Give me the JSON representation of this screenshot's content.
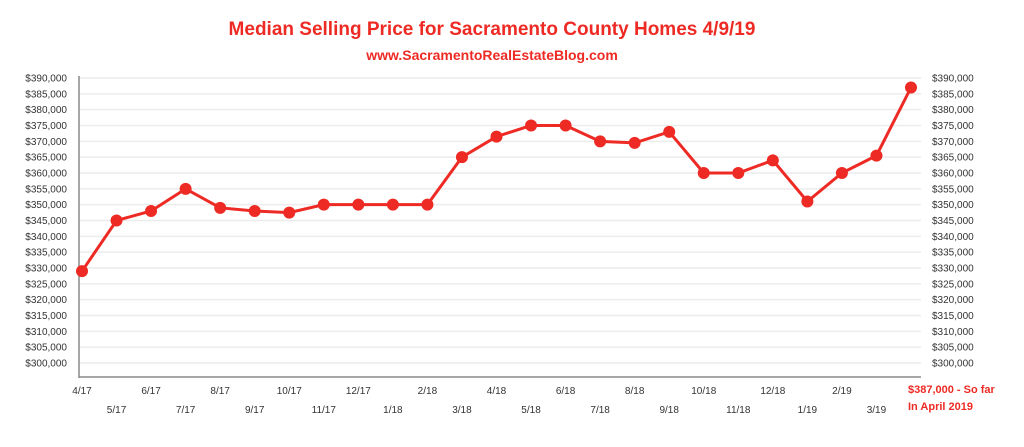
{
  "chart_data": {
    "type": "line",
    "title": "Median Selling Price for Sacramento County Homes 4/9/19",
    "subtitle": "www.SacramentoRealEstateBlog.com",
    "xlabel": "",
    "ylabel": "",
    "ylim": [
      300000,
      390000
    ],
    "ystep": 5000,
    "yticks": [
      "$300,000",
      "$305,000",
      "$310,000",
      "$315,000",
      "$320,000",
      "$325,000",
      "$330,000",
      "$335,000",
      "$340,000",
      "$345,000",
      "$350,000",
      "$355,000",
      "$360,000",
      "$365,000",
      "$370,000",
      "$375,000",
      "$380,000",
      "$385,000",
      "$390,000"
    ],
    "grid": true,
    "categories": [
      "4/17",
      "5/17",
      "6/17",
      "7/17",
      "8/17",
      "9/17",
      "10/17",
      "11/17",
      "12/17",
      "1/18",
      "2/18",
      "3/18",
      "4/18",
      "5/18",
      "6/18",
      "7/18",
      "8/18",
      "9/18",
      "10/18",
      "11/18",
      "12/18",
      "1/19",
      "2/19",
      "3/19",
      "4/19"
    ],
    "series": [
      {
        "name": "Median Selling Price",
        "color": "#ee2a24",
        "values": [
          329000,
          345000,
          348000,
          355000,
          349000,
          348000,
          347500,
          350000,
          350000,
          350000,
          350000,
          365000,
          371500,
          375000,
          375000,
          370000,
          369500,
          373000,
          360000,
          360000,
          364000,
          351000,
          360000,
          365500,
          387000
        ]
      }
    ],
    "annotation": {
      "line1": "$387,000 - So far",
      "line2": "In April 2019"
    }
  }
}
